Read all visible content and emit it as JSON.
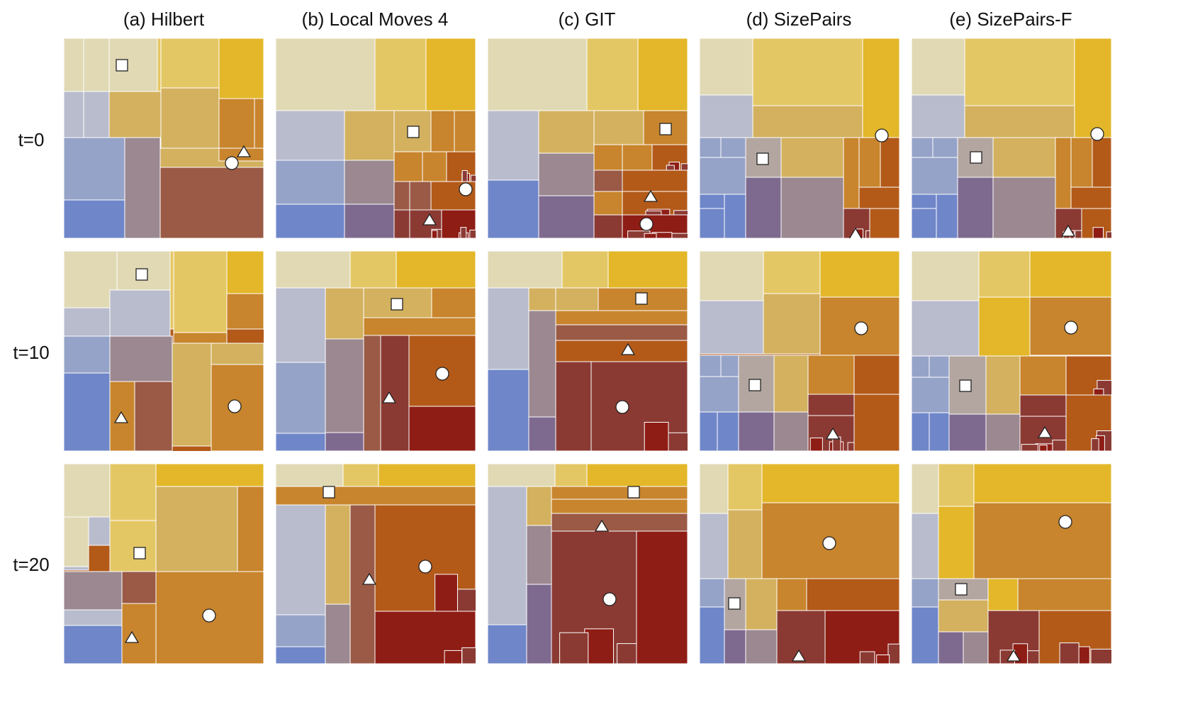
{
  "columns": [
    {
      "label": "(a) Hilbert"
    },
    {
      "label": "(b) Local Moves 4"
    },
    {
      "label": "(c) GIT"
    },
    {
      "label": "(d) SizePairs"
    },
    {
      "label": "(e) SizePairs-F"
    }
  ],
  "rows": [
    {
      "label": "t=0"
    },
    {
      "label": "t=10"
    },
    {
      "label": "t=20"
    }
  ],
  "marker_types": [
    "square",
    "circle",
    "triangle"
  ],
  "colors": {
    "cream": "#e0d9b4",
    "light_gold": "#e4c765",
    "gold": "#e3b729",
    "tan": "#d3b15f",
    "orange": "#c8852d",
    "dark_orange": "#b35a19",
    "rust": "#9a5a45",
    "brick": "#8b3a33",
    "dark_red": "#8e1d15",
    "grey_blue": "#b9bccd",
    "periwinkle": "#96a3c8",
    "blue": "#6f86c9",
    "mauve": "#9b8890",
    "purple": "#7f6a8f",
    "taupe": "#b3a6a0",
    "marker_fill": "#ffffff",
    "marker_stroke": "#222222"
  }
}
